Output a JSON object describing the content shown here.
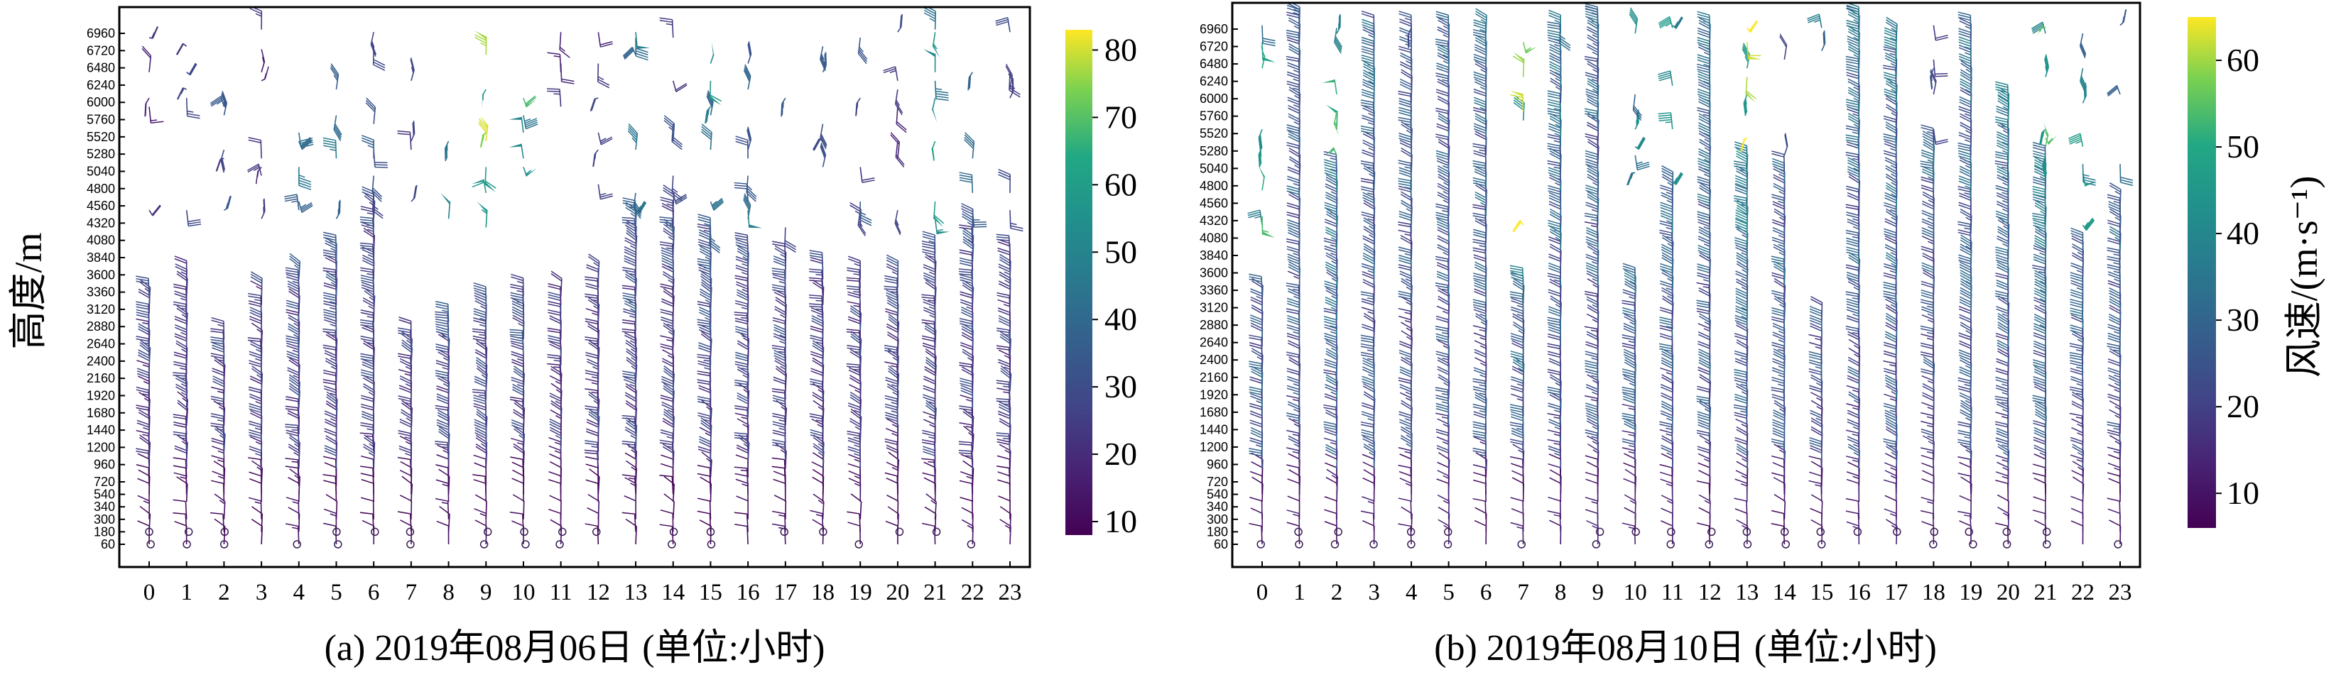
{
  "chart_data": [
    {
      "type": "wind-barb",
      "ylabel": "高度/m",
      "xlabel": "(a) 2019年08月06日 (单位:小时)",
      "x_ticks": [
        "0",
        "1",
        "2",
        "3",
        "4",
        "5",
        "6",
        "7",
        "8",
        "9",
        "10",
        "11",
        "12",
        "13",
        "14",
        "15",
        "16",
        "17",
        "18",
        "19",
        "20",
        "21",
        "22",
        "23"
      ],
      "y_ticks": [
        "60",
        "180",
        "300",
        "340",
        "540",
        "720",
        "960",
        "1200",
        "1440",
        "1680",
        "1920",
        "2160",
        "2400",
        "2640",
        "2880",
        "3120",
        "3360",
        "3600",
        "3840",
        "4080",
        "4320",
        "4560",
        "4800",
        "5040",
        "5280",
        "5520",
        "5760",
        "6000",
        "6240",
        "6480",
        "6720",
        "6960"
      ],
      "colorbar": {
        "ticks": [
          "10",
          "20",
          "30",
          "40",
          "50",
          "60",
          "70",
          "80"
        ],
        "range": [
          8,
          83
        ],
        "label": ""
      },
      "profile_top_m": [
        3400,
        3600,
        2800,
        3400,
        3600,
        4000,
        4600,
        2800,
        3000,
        3200,
        3400,
        3400,
        3600,
        4400,
        4600,
        4200,
        3900,
        3800,
        3700,
        3600,
        3600,
        3900,
        4300,
        4000
      ],
      "high_layer_speed": [
        20,
        25,
        30,
        20,
        40,
        45,
        35,
        30,
        55,
        75,
        60,
        20,
        25,
        45,
        30,
        50,
        40,
        35,
        30,
        30,
        25,
        55,
        40,
        30
      ]
    },
    {
      "type": "wind-barb",
      "ylabel": "风速/(m·s⁻¹)",
      "xlabel": "(b) 2019年08月10日 (单位:小时)",
      "x_ticks": [
        "0",
        "1",
        "2",
        "3",
        "4",
        "5",
        "6",
        "7",
        "8",
        "9",
        "10",
        "11",
        "12",
        "13",
        "14",
        "15",
        "16",
        "17",
        "18",
        "19",
        "20",
        "21",
        "22",
        "23"
      ],
      "y_ticks": [
        "60",
        "180",
        "300",
        "340",
        "540",
        "720",
        "960",
        "1200",
        "1440",
        "1680",
        "1920",
        "2160",
        "2400",
        "2640",
        "2880",
        "3120",
        "3360",
        "3600",
        "3840",
        "4080",
        "4320",
        "4560",
        "4800",
        "5040",
        "5280",
        "5520",
        "5760",
        "6000",
        "6240",
        "6480",
        "6720",
        "6960"
      ],
      "colorbar": {
        "ticks": [
          "10",
          "20",
          "30",
          "40",
          "50",
          "60"
        ],
        "range": [
          6,
          65
        ],
        "label": "风速/(m·s⁻¹)"
      },
      "profile_top_m": [
        3400,
        7200,
        5000,
        7000,
        7000,
        7000,
        7000,
        3500,
        7000,
        7200,
        3500,
        4800,
        7000,
        5200,
        5000,
        3000,
        7200,
        6800,
        5400,
        7000,
        6000,
        5200,
        4000,
        4600
      ],
      "high_layer_speed": [
        45,
        25,
        50,
        25,
        20,
        22,
        24,
        60,
        35,
        25,
        40,
        45,
        30,
        60,
        25,
        35,
        25,
        30,
        25,
        30,
        45,
        55,
        40,
        30
      ]
    }
  ]
}
